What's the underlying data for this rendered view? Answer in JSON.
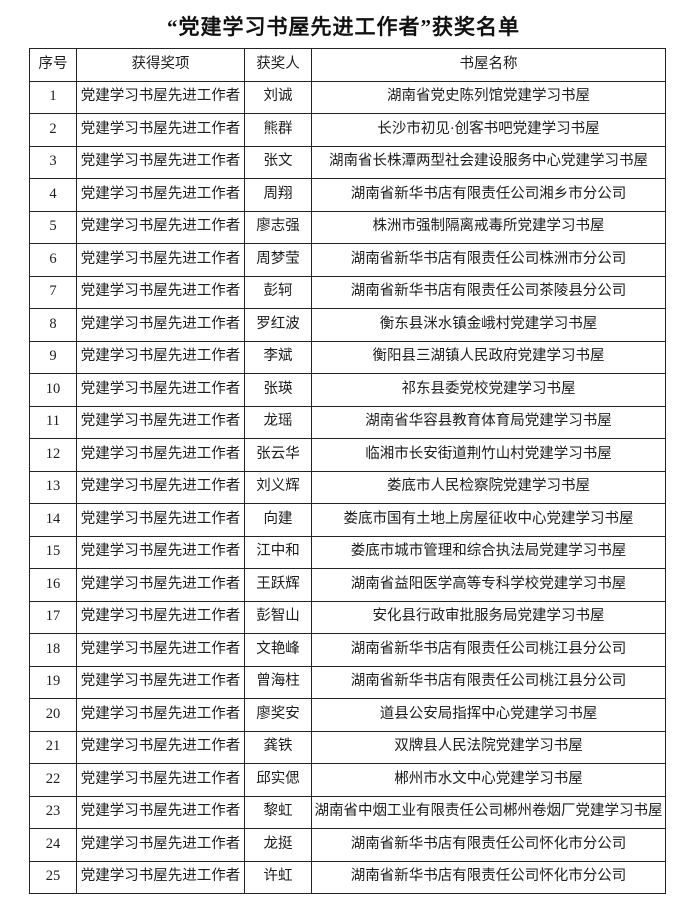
{
  "title": "“党建学习书屋先进工作者”获奖名单",
  "table": {
    "headers": {
      "no": "序号",
      "award": "获得奖项",
      "winner": "获奖人",
      "shuwu": "书屋名称"
    },
    "rows": [
      {
        "no": "1",
        "award": "党建学习书屋先进工作者",
        "winner": "刘诚",
        "shuwu": "湖南省党史陈列馆党建学习书屋"
      },
      {
        "no": "2",
        "award": "党建学习书屋先进工作者",
        "winner": "熊群",
        "shuwu": "长沙市初见·创客书吧党建学习书屋"
      },
      {
        "no": "3",
        "award": "党建学习书屋先进工作者",
        "winner": "张文",
        "shuwu": "湖南省长株潭两型社会建设服务中心党建学习书屋"
      },
      {
        "no": "4",
        "award": "党建学习书屋先进工作者",
        "winner": "周翔",
        "shuwu": "湖南省新华书店有限责任公司湘乡市分公司"
      },
      {
        "no": "5",
        "award": "党建学习书屋先进工作者",
        "winner": "廖志强",
        "shuwu": "株洲市强制隔离戒毒所党建学习书屋"
      },
      {
        "no": "6",
        "award": "党建学习书屋先进工作者",
        "winner": "周梦莹",
        "shuwu": "湖南省新华书店有限责任公司株洲市分公司"
      },
      {
        "no": "7",
        "award": "党建学习书屋先进工作者",
        "winner": "彭轲",
        "shuwu": "湖南省新华书店有限责任公司茶陵县分公司"
      },
      {
        "no": "8",
        "award": "党建学习书屋先进工作者",
        "winner": "罗红波",
        "shuwu": "衡东县洣水镇金峨村党建学习书屋"
      },
      {
        "no": "9",
        "award": "党建学习书屋先进工作者",
        "winner": "李斌",
        "shuwu": "衡阳县三湖镇人民政府党建学习书屋"
      },
      {
        "no": "10",
        "award": "党建学习书屋先进工作者",
        "winner": "张瑛",
        "shuwu": "祁东县委党校党建学习书屋"
      },
      {
        "no": "11",
        "award": "党建学习书屋先进工作者",
        "winner": "龙瑶",
        "shuwu": "湖南省华容县教育体育局党建学习书屋"
      },
      {
        "no": "12",
        "award": "党建学习书屋先进工作者",
        "winner": "张云华",
        "shuwu": "临湘市长安街道荆竹山村党建学习书屋"
      },
      {
        "no": "13",
        "award": "党建学习书屋先进工作者",
        "winner": "刘义辉",
        "shuwu": "娄底市人民检察院党建学习书屋"
      },
      {
        "no": "14",
        "award": "党建学习书屋先进工作者",
        "winner": "向建",
        "shuwu": "娄底市国有土地上房屋征收中心党建学习书屋"
      },
      {
        "no": "15",
        "award": "党建学习书屋先进工作者",
        "winner": "江中和",
        "shuwu": "娄底市城市管理和综合执法局党建学习书屋"
      },
      {
        "no": "16",
        "award": "党建学习书屋先进工作者",
        "winner": "王跃辉",
        "shuwu": "湖南省益阳医学高等专科学校党建学习书屋"
      },
      {
        "no": "17",
        "award": "党建学习书屋先进工作者",
        "winner": "彭智山",
        "shuwu": "安化县行政审批服务局党建学习书屋"
      },
      {
        "no": "18",
        "award": "党建学习书屋先进工作者",
        "winner": "文艳峰",
        "shuwu": "湖南省新华书店有限责任公司桃江县分公司"
      },
      {
        "no": "19",
        "award": "党建学习书屋先进工作者",
        "winner": "曾海柱",
        "shuwu": "湖南省新华书店有限责任公司桃江县分公司"
      },
      {
        "no": "20",
        "award": "党建学习书屋先进工作者",
        "winner": "廖奖安",
        "shuwu": "道县公安局指挥中心党建学习书屋"
      },
      {
        "no": "21",
        "award": "党建学习书屋先进工作者",
        "winner": "龚铁",
        "shuwu": "双牌县人民法院党建学习书屋"
      },
      {
        "no": "22",
        "award": "党建学习书屋先进工作者",
        "winner": "邱实偲",
        "shuwu": "郴州市水文中心党建学习书屋"
      },
      {
        "no": "23",
        "award": "党建学习书屋先进工作者",
        "winner": "黎虹",
        "shuwu": "湖南省中烟工业有限责任公司郴州卷烟厂党建学习书屋"
      },
      {
        "no": "24",
        "award": "党建学习书屋先进工作者",
        "winner": "龙挺",
        "shuwu": "湖南省新华书店有限责任公司怀化市分公司"
      },
      {
        "no": "25",
        "award": "党建学习书屋先进工作者",
        "winner": "许虹",
        "shuwu": "湖南省新华书店有限责任公司怀化市分公司"
      }
    ]
  }
}
